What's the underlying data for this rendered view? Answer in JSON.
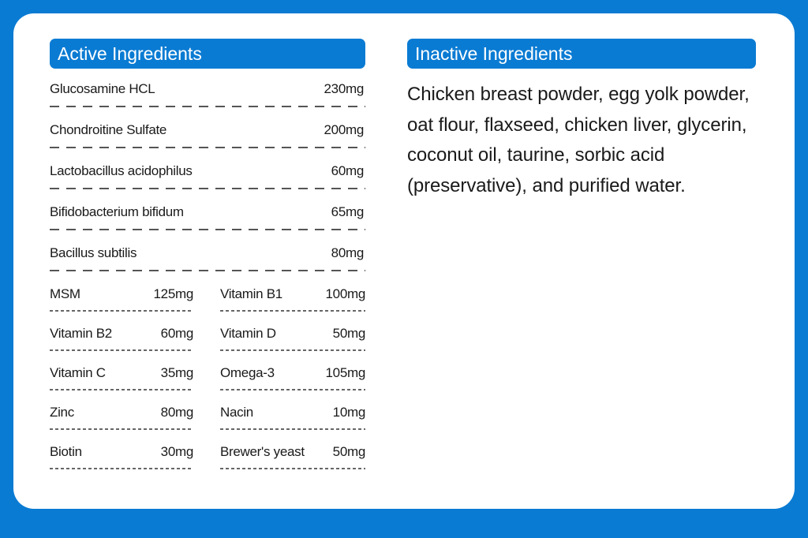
{
  "active": {
    "title": "Active Ingredients",
    "single_rows": [
      {
        "name": "Glucosamine HCL",
        "amount": "230mg"
      },
      {
        "name": "Chondroitine Sulfate",
        "amount": "200mg"
      },
      {
        "name": "Lactobacillus acidophilus",
        "amount": "60mg"
      },
      {
        "name": "Bifidobacterium bifidum",
        "amount": "65mg"
      },
      {
        "name": "Bacillus subtilis",
        "amount": "80mg"
      }
    ],
    "pair_rows": [
      {
        "left": {
          "name": "MSM",
          "amount": "125mg"
        },
        "right": {
          "name": "Vitamin B1",
          "amount": "100mg"
        }
      },
      {
        "left": {
          "name": "Vitamin B2",
          "amount": "60mg"
        },
        "right": {
          "name": "Vitamin D",
          "amount": "50mg"
        }
      },
      {
        "left": {
          "name": "Vitamin C",
          "amount": "35mg"
        },
        "right": {
          "name": "Omega-3",
          "amount": "105mg"
        }
      },
      {
        "left": {
          "name": "Zinc",
          "amount": "80mg"
        },
        "right": {
          "name": "Nacin",
          "amount": "10mg"
        }
      },
      {
        "left": {
          "name": "Biotin",
          "amount": "30mg"
        },
        "right": {
          "name": "Brewer's yeast",
          "amount": "50mg"
        }
      }
    ]
  },
  "inactive": {
    "title": "Inactive Ingredients",
    "lines": [
      "Chicken breast powder, egg yolk powder,",
      "oat flour, flaxseed, chicken liver, glycerin,",
      "coconut oil, taurine, sorbic acid",
      "(preservative), and purified water."
    ]
  },
  "colors": {
    "background": "#0a7bd3",
    "header": "#0a7bd3",
    "card": "#ffffff",
    "text": "#1a1a1a"
  }
}
